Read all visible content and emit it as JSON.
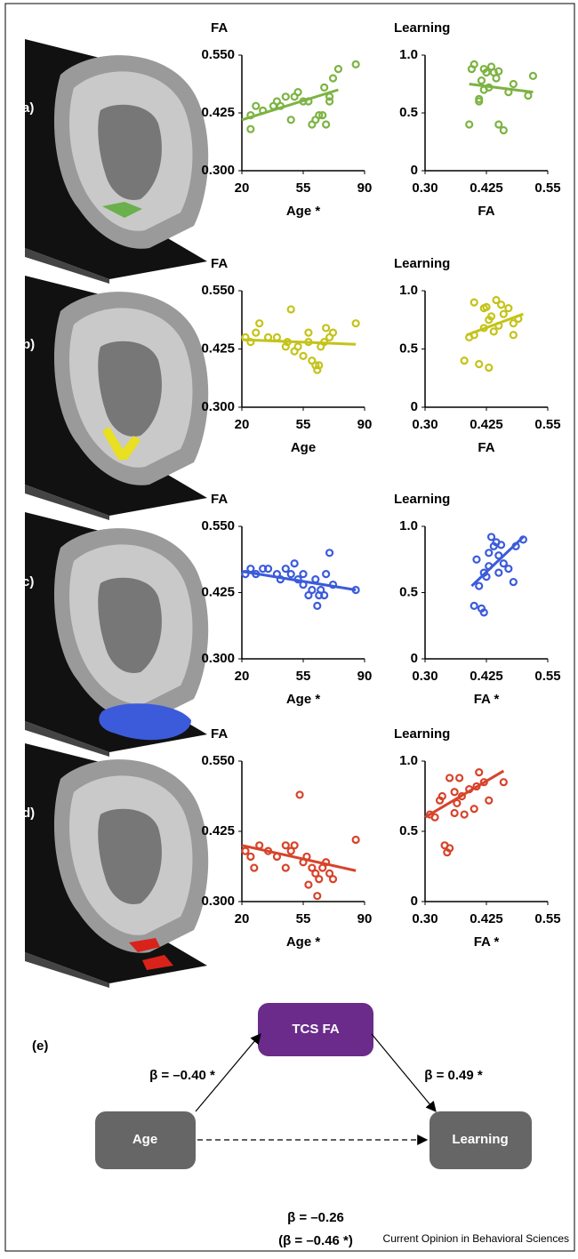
{
  "chart_data": [
    {
      "type": "scatter",
      "title": "FA",
      "xlabel": "Age *",
      "color": "#7cb342",
      "x": [
        25,
        25,
        28,
        32,
        38,
        40,
        42,
        45,
        48,
        50,
        52,
        55,
        58,
        60,
        62,
        64,
        66,
        67,
        68,
        70,
        72,
        75,
        85,
        70
      ],
      "y": [
        0.39,
        0.42,
        0.44,
        0.43,
        0.44,
        0.45,
        0.44,
        0.46,
        0.41,
        0.46,
        0.47,
        0.45,
        0.45,
        0.4,
        0.41,
        0.42,
        0.42,
        0.48,
        0.4,
        0.46,
        0.5,
        0.52,
        0.53,
        0.45
      ],
      "fit": {
        "x": [
          20,
          75
        ],
        "y": [
          0.41,
          0.475
        ]
      },
      "xlim": [
        20,
        90
      ],
      "xticks": [
        20,
        55,
        90
      ],
      "ylim": [
        0.3,
        0.55
      ],
      "yticks": [
        {
          "value": 0.3,
          "label": "0.300"
        },
        0.425,
        {
          "value": 0.55,
          "label": "0.550"
        }
      ]
    },
    {
      "type": "scatter",
      "title": "Learning",
      "xlabel": "FA",
      "color": "#7cb342",
      "x": [
        0.39,
        0.395,
        0.4,
        0.41,
        0.41,
        0.415,
        0.42,
        0.425,
        0.43,
        0.435,
        0.44,
        0.445,
        0.45,
        0.45,
        0.46,
        0.47,
        0.48,
        0.51,
        0.52,
        0.42
      ],
      "y": [
        0.4,
        0.88,
        0.92,
        0.6,
        0.62,
        0.78,
        0.88,
        0.85,
        0.72,
        0.9,
        0.85,
        0.8,
        0.86,
        0.4,
        0.35,
        0.68,
        0.75,
        0.65,
        0.82,
        0.7
      ],
      "fit": {
        "x": [
          0.39,
          0.52
        ],
        "y": [
          0.75,
          0.68
        ]
      },
      "xlim": [
        0.3,
        0.55
      ],
      "xticks": [
        {
          "value": 0.3,
          "label": "0.30"
        },
        0.425,
        {
          "value": 0.55,
          "label": "0.55"
        }
      ],
      "ylim": [
        0,
        1
      ],
      "yticks": [
        0,
        0.5,
        {
          "value": 1,
          "label": "1.0"
        }
      ]
    },
    {
      "type": "scatter",
      "title": "FA",
      "xlabel": "Age",
      "color": "#c4c31a",
      "x": [
        22,
        25,
        28,
        30,
        35,
        40,
        45,
        46,
        48,
        50,
        52,
        55,
        58,
        60,
        62,
        63,
        64,
        65,
        67,
        68,
        70,
        72,
        85,
        58
      ],
      "y": [
        0.45,
        0.44,
        0.46,
        0.48,
        0.45,
        0.45,
        0.43,
        0.44,
        0.51,
        0.42,
        0.43,
        0.41,
        0.44,
        0.4,
        0.39,
        0.38,
        0.39,
        0.43,
        0.44,
        0.47,
        0.45,
        0.46,
        0.48,
        0.46
      ],
      "fit": {
        "x": [
          20,
          85
        ],
        "y": [
          0.445,
          0.435
        ]
      },
      "xlim": [
        20,
        90
      ],
      "xticks": [
        20,
        55,
        90
      ],
      "ylim": [
        0.3,
        0.55
      ],
      "yticks": [
        {
          "value": 0.3,
          "label": "0.300"
        },
        0.425,
        {
          "value": 0.55,
          "label": "0.550"
        }
      ]
    },
    {
      "type": "scatter",
      "title": "Learning",
      "xlabel": "FA",
      "color": "#c4c31a",
      "x": [
        0.38,
        0.39,
        0.4,
        0.4,
        0.41,
        0.42,
        0.425,
        0.43,
        0.43,
        0.44,
        0.445,
        0.45,
        0.455,
        0.46,
        0.47,
        0.48,
        0.48,
        0.49,
        0.42,
        0.435
      ],
      "y": [
        0.4,
        0.6,
        0.62,
        0.9,
        0.37,
        0.85,
        0.86,
        0.34,
        0.75,
        0.65,
        0.92,
        0.7,
        0.88,
        0.8,
        0.85,
        0.72,
        0.62,
        0.76,
        0.68,
        0.78
      ],
      "fit": {
        "x": [
          0.385,
          0.5
        ],
        "y": [
          0.62,
          0.8
        ]
      },
      "xlim": [
        0.3,
        0.55
      ],
      "xticks": [
        {
          "value": 0.3,
          "label": "0.30"
        },
        0.425,
        {
          "value": 0.55,
          "label": "0.55"
        }
      ],
      "ylim": [
        0,
        1
      ],
      "yticks": [
        0,
        0.5,
        {
          "value": 1,
          "label": "1.0"
        }
      ]
    },
    {
      "type": "scatter",
      "title": "FA",
      "xlabel": "Age *",
      "color": "#3b5bdb",
      "x": [
        22,
        25,
        28,
        32,
        35,
        40,
        42,
        45,
        48,
        50,
        52,
        55,
        58,
        60,
        62,
        63,
        64,
        65,
        67,
        68,
        70,
        72,
        85,
        55
      ],
      "y": [
        0.46,
        0.47,
        0.46,
        0.47,
        0.47,
        0.46,
        0.45,
        0.47,
        0.46,
        0.48,
        0.45,
        0.44,
        0.42,
        0.43,
        0.45,
        0.4,
        0.42,
        0.43,
        0.42,
        0.46,
        0.5,
        0.44,
        0.43,
        0.46
      ],
      "fit": {
        "x": [
          20,
          85
        ],
        "y": [
          0.465,
          0.43
        ]
      },
      "xlim": [
        20,
        90
      ],
      "xticks": [
        20,
        55,
        90
      ],
      "ylim": [
        0.3,
        0.55
      ],
      "yticks": [
        {
          "value": 0.3,
          "label": "0.300"
        },
        0.425,
        {
          "value": 0.55,
          "label": "0.550"
        }
      ]
    },
    {
      "type": "scatter",
      "title": "Learning",
      "xlabel": "FA *",
      "color": "#3b5bdb",
      "x": [
        0.4,
        0.405,
        0.41,
        0.415,
        0.42,
        0.425,
        0.43,
        0.435,
        0.44,
        0.445,
        0.45,
        0.455,
        0.46,
        0.47,
        0.48,
        0.485,
        0.5,
        0.42,
        0.43,
        0.45
      ],
      "y": [
        0.4,
        0.75,
        0.55,
        0.38,
        0.65,
        0.62,
        0.7,
        0.92,
        0.85,
        0.88,
        0.78,
        0.86,
        0.72,
        0.68,
        0.58,
        0.85,
        0.9,
        0.35,
        0.8,
        0.65
      ],
      "fit": {
        "x": [
          0.395,
          0.5
        ],
        "y": [
          0.55,
          0.92
        ]
      },
      "xlim": [
        0.3,
        0.55
      ],
      "xticks": [
        {
          "value": 0.3,
          "label": "0.30"
        },
        0.425,
        {
          "value": 0.55,
          "label": "0.55"
        }
      ],
      "ylim": [
        0,
        1
      ],
      "yticks": [
        0,
        0.5,
        {
          "value": 1,
          "label": "1.0"
        }
      ]
    },
    {
      "type": "scatter",
      "title": "FA",
      "xlabel": "Age *",
      "color": "#d7432a",
      "x": [
        22,
        25,
        27,
        30,
        35,
        40,
        45,
        48,
        50,
        53,
        55,
        57,
        58,
        60,
        62,
        63,
        64,
        66,
        68,
        70,
        72,
        85,
        45
      ],
      "y": [
        0.39,
        0.38,
        0.36,
        0.4,
        0.39,
        0.38,
        0.36,
        0.39,
        0.4,
        0.49,
        0.37,
        0.38,
        0.33,
        0.36,
        0.35,
        0.31,
        0.34,
        0.36,
        0.37,
        0.35,
        0.34,
        0.41,
        0.4
      ],
      "fit": {
        "x": [
          20,
          85
        ],
        "y": [
          0.4,
          0.355
        ]
      },
      "xlim": [
        20,
        90
      ],
      "xticks": [
        20,
        55,
        90
      ],
      "ylim": [
        0.3,
        0.55
      ],
      "yticks": [
        {
          "value": 0.3,
          "label": "0.300"
        },
        0.425,
        {
          "value": 0.55,
          "label": "0.550"
        }
      ]
    },
    {
      "type": "scatter",
      "title": "Learning",
      "xlabel": "FA *",
      "color": "#d7432a",
      "x": [
        0.31,
        0.32,
        0.33,
        0.335,
        0.34,
        0.345,
        0.35,
        0.35,
        0.36,
        0.365,
        0.37,
        0.375,
        0.38,
        0.39,
        0.4,
        0.405,
        0.41,
        0.42,
        0.43,
        0.46,
        0.36
      ],
      "y": [
        0.62,
        0.6,
        0.72,
        0.75,
        0.4,
        0.35,
        0.38,
        0.88,
        0.63,
        0.7,
        0.88,
        0.75,
        0.62,
        0.8,
        0.66,
        0.82,
        0.92,
        0.85,
        0.72,
        0.85,
        0.78
      ],
      "fit": {
        "x": [
          0.3,
          0.46
        ],
        "y": [
          0.6,
          0.93
        ]
      },
      "xlim": [
        0.3,
        0.55
      ],
      "xticks": [
        {
          "value": 0.3,
          "label": "0.30"
        },
        0.425,
        {
          "value": 0.55,
          "label": "0.55"
        }
      ],
      "ylim": [
        0,
        1
      ],
      "yticks": [
        0,
        0.5,
        {
          "value": 1,
          "label": "1.0"
        }
      ]
    }
  ],
  "panel_labels": [
    "(a)",
    "(b)",
    "(c)",
    "(d)",
    "(e)"
  ],
  "diagram": {
    "nodes": [
      "TCS FA",
      "Age",
      "Learning"
    ],
    "edges": [
      "β = –0.40 *",
      "β = 0.49 *",
      "β = –0.26",
      "(β = –0.46 *)"
    ]
  },
  "footer": "Current Opinion in Behavioral Sciences"
}
